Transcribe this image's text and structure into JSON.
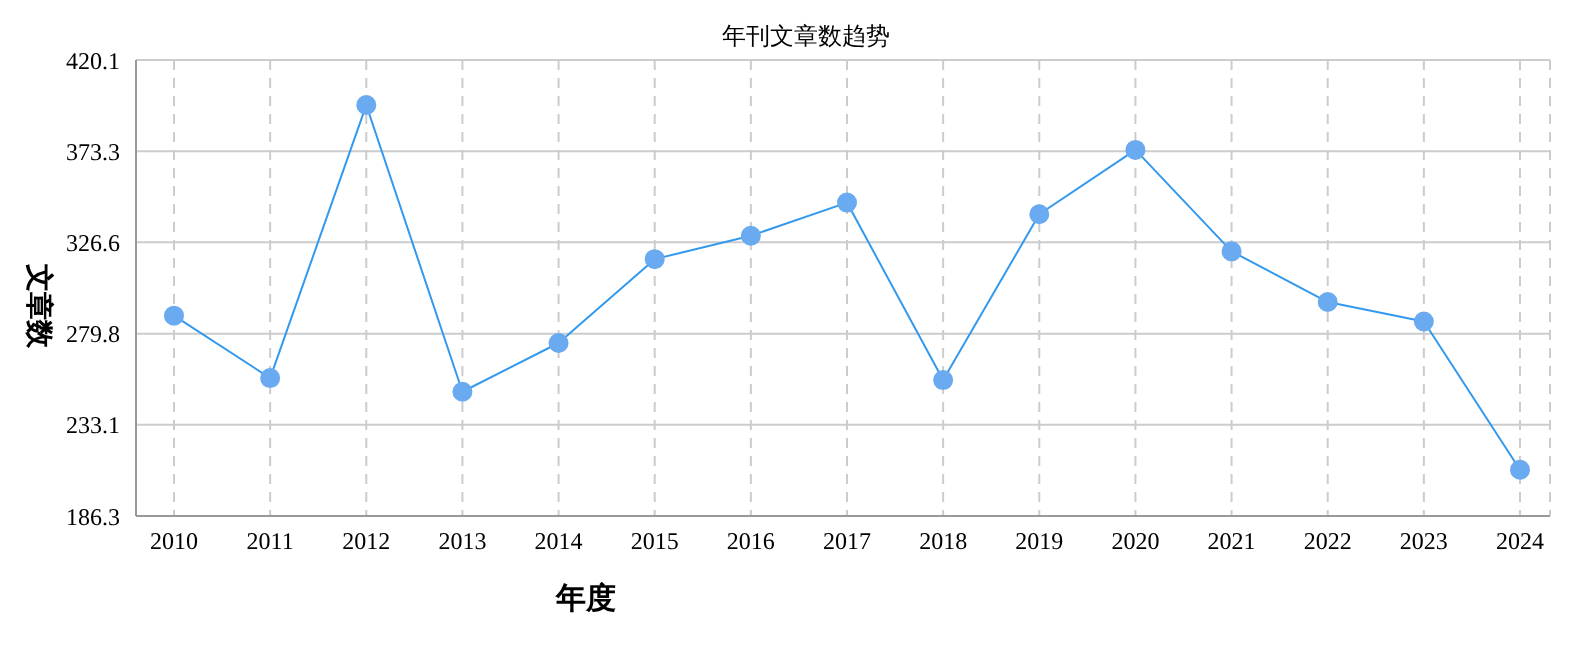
{
  "chart_data": {
    "type": "line",
    "title": "年刊文章数趋势",
    "xlabel": "年度",
    "ylabel": "文章数",
    "categories": [
      "2010",
      "2011",
      "2012",
      "2013",
      "2014",
      "2015",
      "2016",
      "2017",
      "2018",
      "2019",
      "2020",
      "2021",
      "2022",
      "2023",
      "2024"
    ],
    "series": [
      {
        "color": "#3399ee",
        "values": [
          289,
          257,
          397,
          250,
          275,
          318,
          330,
          347,
          256,
          341,
          374,
          322,
          296,
          286,
          210
        ]
      }
    ],
    "ylim": [
      186.3,
      420.1
    ],
    "yticks": [
      186.3,
      233.1,
      279.8,
      326.6,
      373.3,
      420.1
    ],
    "grid": true,
    "marker": "circle",
    "line_style": "solid"
  }
}
